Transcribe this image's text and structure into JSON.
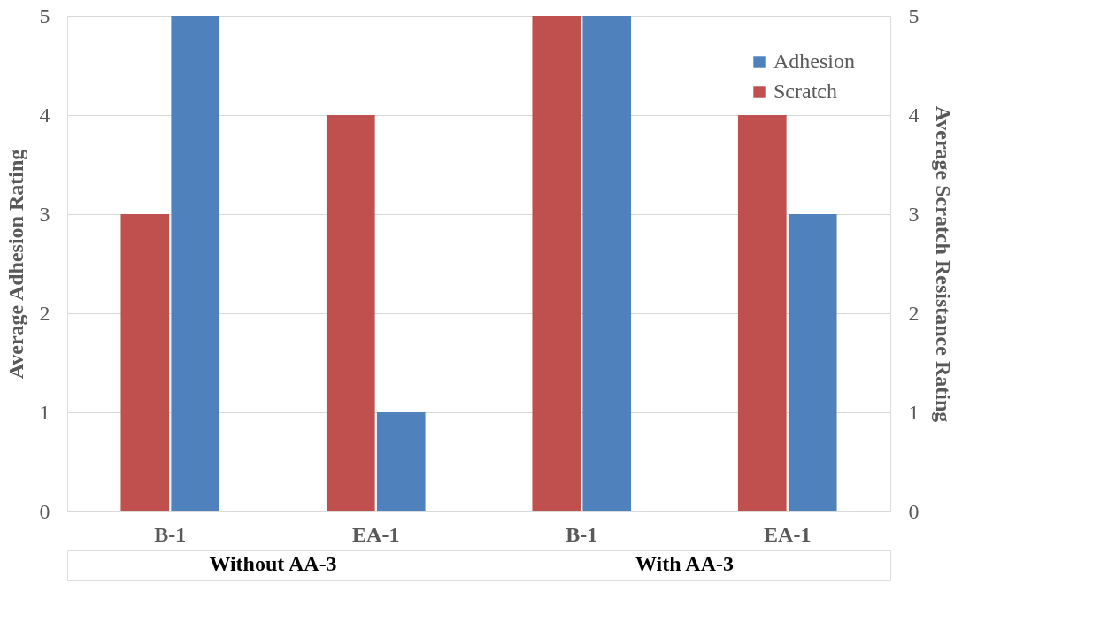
{
  "chart_data": {
    "type": "bar",
    "categories": [
      "B-1",
      "EA-1",
      "B-1",
      "EA-1"
    ],
    "series": [
      {
        "name": "Scratch",
        "color": "#c0504d",
        "values": [
          3,
          4,
          5,
          4
        ],
        "axis": "y2"
      },
      {
        "name": "Adhesion",
        "color": "#4f81bd",
        "values": [
          5,
          1,
          5,
          3
        ]
      }
    ],
    "ylabel": "Average Adhesion Rating",
    "y2label": "Average Scratch Resistance Rating",
    "ylim": [
      0,
      5
    ],
    "yticks": [
      0,
      1,
      2,
      3,
      4,
      5
    ],
    "y2lim": [
      0,
      5
    ],
    "y2ticks": [
      0,
      1,
      2,
      3,
      4,
      5
    ],
    "annotations": [
      "Without AA-3",
      "With AA-3"
    ],
    "grid": "y",
    "legend": "top right"
  }
}
